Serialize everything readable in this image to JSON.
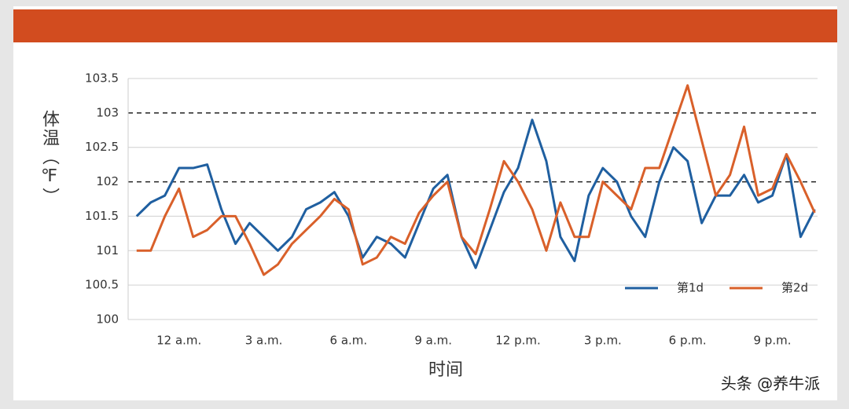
{
  "chart_data": {
    "type": "line",
    "x_label": "时间",
    "y_label": "体温（℉）",
    "x": [
      -1.5,
      -1,
      -0.5,
      0,
      0.5,
      1,
      1.5,
      2,
      2.5,
      3,
      3.5,
      4,
      4.5,
      5,
      5.5,
      6,
      6.5,
      7,
      7.5,
      8,
      8.5,
      9,
      9.5,
      10,
      10.5,
      11,
      11.5,
      12,
      12.5,
      13,
      13.5,
      14,
      14.5,
      15,
      15.5,
      16,
      16.5,
      17,
      17.5,
      18,
      18.5,
      19,
      19.5,
      20,
      20.5,
      21,
      21.5,
      22,
      22.5
    ],
    "series": [
      {
        "name": "第1d",
        "color": "#1f5fa0",
        "values": [
          101.5,
          101.7,
          101.8,
          102.2,
          102.2,
          102.25,
          101.6,
          101.1,
          101.4,
          101.2,
          101.0,
          101.2,
          101.6,
          101.7,
          101.85,
          101.5,
          100.9,
          101.2,
          101.1,
          100.9,
          101.4,
          101.9,
          102.1,
          101.2,
          100.75,
          101.3,
          101.85,
          102.2,
          102.9,
          102.3,
          101.2,
          100.85,
          101.8,
          102.2,
          102.0,
          101.5,
          101.2,
          102.0,
          102.5,
          102.3,
          101.4,
          101.8,
          101.8,
          102.1,
          101.7,
          101.8,
          102.4,
          101.2,
          101.6
        ]
      },
      {
        "name": "第2d",
        "color": "#d9602a",
        "values": [
          101.0,
          101.0,
          101.5,
          101.9,
          101.2,
          101.3,
          101.5,
          101.5,
          101.1,
          100.65,
          100.8,
          101.1,
          101.3,
          101.5,
          101.75,
          101.6,
          100.8,
          100.9,
          101.2,
          101.1,
          101.55,
          101.8,
          102.0,
          101.2,
          100.95,
          101.6,
          102.3,
          102.0,
          101.6,
          101.0,
          101.7,
          101.2,
          101.2,
          102.0,
          101.8,
          101.6,
          102.2,
          102.2,
          102.8,
          103.4,
          102.6,
          101.8,
          102.1,
          102.8,
          101.8,
          101.9,
          102.4,
          102.0,
          101.55
        ]
      }
    ],
    "xlim": [
      -1.8,
      22.6
    ],
    "xticks": [
      {
        "value": 0,
        "label": "12 a.m."
      },
      {
        "value": 3,
        "label": "3 a.m."
      },
      {
        "value": 6,
        "label": "6 a.m."
      },
      {
        "value": 9,
        "label": "9 a.m."
      },
      {
        "value": 12,
        "label": "12 p.m."
      },
      {
        "value": 15,
        "label": "3 p.m."
      },
      {
        "value": 18,
        "label": "6 p.m."
      },
      {
        "value": 21,
        "label": "9 p.m."
      }
    ],
    "ylim": [
      100,
      103.5
    ],
    "yticks": [
      100,
      100.5,
      101,
      101.5,
      102,
      102.5,
      103,
      103.5
    ],
    "grid": true,
    "dashed_ticks": [
      102,
      103
    ],
    "legend": "lower right"
  },
  "watermark": "头条 @养牛派"
}
